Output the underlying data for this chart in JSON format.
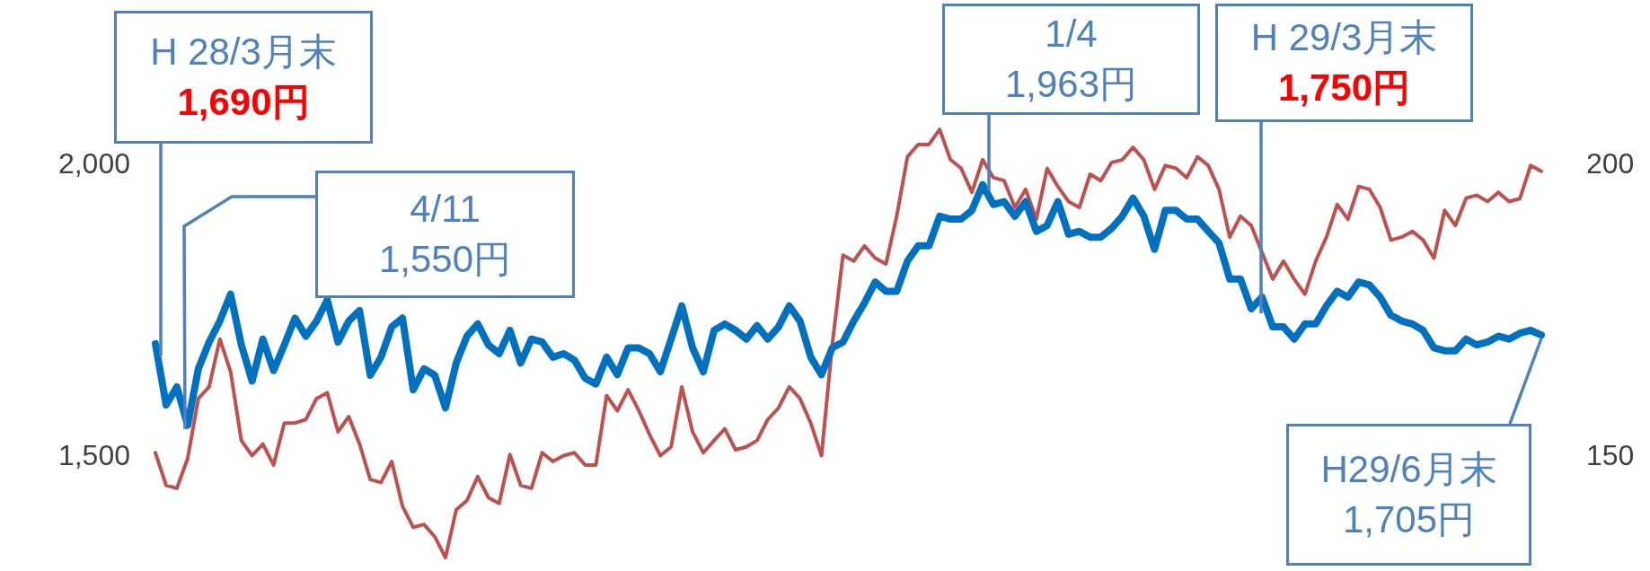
{
  "chart_data": {
    "type": "line",
    "categories": [
      null,
      null,
      null,
      null,
      null,
      null,
      null,
      null,
      null,
      null,
      null,
      null,
      null,
      null,
      null,
      null,
      null,
      null,
      null,
      null,
      null,
      null,
      null,
      null,
      null,
      null,
      null,
      null,
      null,
      null,
      null,
      null,
      null,
      null,
      null,
      null,
      null,
      null,
      null,
      null,
      null,
      null,
      null,
      null,
      null,
      null,
      null,
      null,
      null,
      null,
      null,
      null,
      null,
      null,
      null,
      null,
      null,
      null,
      null,
      null,
      null,
      null,
      null,
      null,
      null,
      null,
      null,
      null,
      null,
      null,
      null,
      null,
      null,
      null,
      null,
      null,
      null,
      null,
      null,
      null,
      null,
      null,
      null,
      null,
      null,
      null,
      null,
      null,
      null,
      null,
      null,
      null,
      null,
      null,
      null,
      null,
      null,
      null,
      null,
      null,
      null,
      null,
      null,
      null,
      null,
      null,
      null,
      null,
      null,
      null,
      null,
      null,
      null,
      null,
      null,
      null,
      null,
      null,
      null,
      null,
      null,
      null,
      null,
      null,
      null,
      null,
      null,
      null,
      null,
      null
    ],
    "series": [
      {
        "color": "#c0504d",
        "axis": "y2",
        "values": [
          150.3,
          144.7,
          144.2,
          149.3,
          159.6,
          161.6,
          169.8,
          164.2,
          152.4,
          149.8,
          151.8,
          148.2,
          155.4,
          155.4,
          156.0,
          159.6,
          160.6,
          153.9,
          156.5,
          151.8,
          145.7,
          145.2,
          148.8,
          141.1,
          137.5,
          138.0,
          135.9,
          132.3,
          140.5,
          142.1,
          146.2,
          142.6,
          141.6,
          150.0,
          144.7,
          144.2,
          150.3,
          148.8,
          149.8,
          150.3,
          148.2,
          148.2,
          160.1,
          157.5,
          161.1,
          157.5,
          153.4,
          149.8,
          151.3,
          161.6,
          153.9,
          150.3,
          152.4,
          154.4,
          150.8,
          151.3,
          152.4,
          156.0,
          158.0,
          161.6,
          159.6,
          155.4,
          149.8,
          168.8,
          184.2,
          183.2,
          185.8,
          183.7,
          182.7,
          190.9,
          201.1,
          203.2,
          203.2,
          205.8,
          200.6,
          199.1,
          195.0,
          200.6,
          197.5,
          197.0,
          192.4,
          195.5,
          190.4,
          199.1,
          196.0,
          193.4,
          192.4,
          198.1,
          197.0,
          200.1,
          200.6,
          202.7,
          200.6,
          195.5,
          199.6,
          199.1,
          197.5,
          201.1,
          199.6,
          195.5,
          187.3,
          190.9,
          189.3,
          184.7,
          180.1,
          183.2,
          180.1,
          177.5,
          183.2,
          187.3,
          192.9,
          190.4,
          196.0,
          195.5,
          192.4,
          186.8,
          187.3,
          188.3,
          186.8,
          183.7,
          191.9,
          189.3,
          194.0,
          194.5,
          193.4,
          195.0,
          193.4,
          193.9,
          199.6,
          198.6
        ]
      },
      {
        "color": "#0070c0",
        "values": [
          1690,
          1585,
          1616,
          1550,
          1647,
          1693,
          1729,
          1775,
          1688,
          1626,
          1698,
          1644,
          1688,
          1734,
          1703,
          1729,
          1765,
          1693,
          1729,
          1747,
          1636,
          1667,
          1719,
          1734,
          1611,
          1647,
          1636,
          1580,
          1657,
          1703,
          1724,
          1688,
          1673,
          1713,
          1657,
          1698,
          1693,
          1667,
          1673,
          1662,
          1631,
          1621,
          1667,
          1637,
          1683,
          1683,
          1673,
          1642,
          1698,
          1755,
          1683,
          1642,
          1713,
          1724,
          1713,
          1698,
          1721,
          1698,
          1719,
          1755,
          1729,
          1667,
          1637,
          1683,
          1693,
          1729,
          1760,
          1796,
          1780,
          1780,
          1832,
          1858,
          1858,
          1909,
          1904,
          1904,
          1919,
          1963,
          1929,
          1934,
          1909,
          1934,
          1883,
          1893,
          1934,
          1878,
          1883,
          1873,
          1873,
          1888,
          1909,
          1940,
          1909,
          1852,
          1919,
          1919,
          1904,
          1904,
          1883,
          1863,
          1801,
          1801,
          1750,
          1770,
          1719,
          1719,
          1698,
          1724,
          1724,
          1755,
          1780,
          1770,
          1796,
          1791,
          1770,
          1739,
          1729,
          1724,
          1713,
          1683,
          1678,
          1678,
          1698,
          1688,
          1693,
          1703,
          1698,
          1708,
          1713,
          1705
        ]
      }
    ],
    "ylim": [
      1300,
      2280
    ],
    "yticks": [
      {
        "value": 1500,
        "label": "1,500"
      },
      {
        "value": 2000,
        "label": "2,000"
      }
    ],
    "y2lim": [
      130,
      228
    ],
    "y2ticks": [
      150,
      200
    ],
    "marker": "none",
    "line_style": "solid",
    "annotations": [
      "H 28/3月末\n1,690円",
      "4/11\n1,550円",
      "1/4\n1,963円",
      "H 29/3月末\n1,750円",
      "H29/6月末\n1,705円"
    ]
  }
}
